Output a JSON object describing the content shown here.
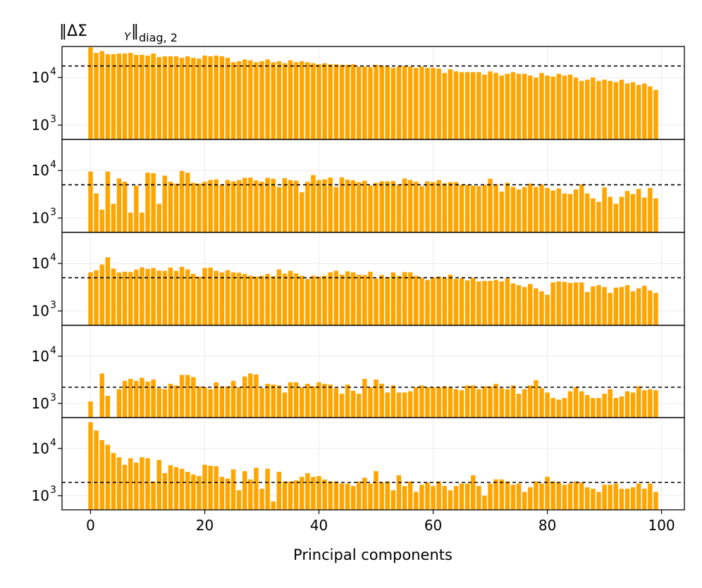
{
  "chart_data": {
    "type": "bar",
    "title_main": "‖ΔΣ",
    "title_sub_var": "Y",
    "title_norm": "diag, 2",
    "xlabel": "Principal components",
    "x_ticks": [
      "0",
      "20",
      "40",
      "60",
      "80",
      "100"
    ],
    "x_tick_values": [
      0,
      20,
      40,
      60,
      80,
      100
    ],
    "xlim": [
      -5,
      104
    ],
    "yscale": "log",
    "ylim": [
      500,
      45000
    ],
    "y_ticks": [
      {
        "value": 1000,
        "base": "10",
        "exp": "3"
      },
      {
        "value": 10000,
        "base": "10",
        "exp": "4"
      }
    ],
    "grid": true,
    "bar_color": "#FFA500",
    "reference_line_style": "dashed",
    "panels": [
      {
        "threshold": 17500,
        "values": [
          43000,
          33000,
          36000,
          31000,
          31000,
          32000,
          32000,
          33000,
          30000,
          30000,
          29000,
          32000,
          27000,
          28000,
          28000,
          28000,
          26000,
          28000,
          26000,
          25000,
          29000,
          28000,
          29000,
          28000,
          26000,
          21000,
          22000,
          24000,
          23000,
          21000,
          22000,
          24000,
          21000,
          22000,
          20000,
          23000,
          21000,
          22000,
          21000,
          20000,
          19000,
          20000,
          19000,
          19000,
          18500,
          18500,
          19000,
          17000,
          17000,
          16500,
          18500,
          18000,
          17000,
          16000,
          17000,
          17500,
          17000,
          16000,
          17000,
          16000,
          16000,
          15500,
          12500,
          15000,
          13500,
          13000,
          13000,
          13000,
          13000,
          11500,
          13500,
          12500,
          11000,
          12000,
          13000,
          12000,
          12000,
          11000,
          10000,
          12500,
          11000,
          10500,
          12000,
          11000,
          11500,
          10000,
          8500,
          9000,
          10000,
          8500,
          9000,
          8500,
          8000,
          9000,
          7500,
          8000,
          7000,
          7500,
          6500,
          5500
        ]
      },
      {
        "threshold": 5000,
        "values": [
          9500,
          3300,
          1500,
          9500,
          2000,
          6800,
          5800,
          1300,
          4800,
          1300,
          9000,
          8800,
          2000,
          7800,
          5800,
          5300,
          9800,
          9000,
          5500,
          5300,
          5800,
          6300,
          6500,
          5000,
          6300,
          5900,
          6300,
          7000,
          7100,
          6200,
          5800,
          7000,
          6700,
          4500,
          6900,
          6300,
          6100,
          3500,
          5800,
          8000,
          6300,
          6500,
          7100,
          4500,
          7200,
          6400,
          6200,
          5700,
          6100,
          4800,
          5500,
          5900,
          5900,
          6000,
          5100,
          6800,
          6300,
          5800,
          4700,
          5900,
          5700,
          6300,
          5400,
          5700,
          5700,
          5000,
          5000,
          4800,
          4700,
          5000,
          6700,
          5100,
          3600,
          5500,
          4500,
          4000,
          4500,
          5300,
          4500,
          5100,
          4300,
          3800,
          4200,
          3300,
          3200,
          4000,
          5100,
          3300,
          2600,
          2200,
          4400,
          2800,
          2000,
          2800,
          3700,
          3200,
          4100,
          2700,
          4300,
          2600
        ]
      },
      {
        "threshold": 5000,
        "values": [
          6500,
          7200,
          9500,
          13500,
          7800,
          6500,
          6700,
          6600,
          7400,
          8300,
          7700,
          8000,
          7100,
          7000,
          8200,
          7000,
          8500,
          7500,
          6000,
          5300,
          8000,
          8200,
          7000,
          6500,
          7200,
          6500,
          6400,
          6000,
          5500,
          5300,
          5500,
          6000,
          5400,
          7500,
          6100,
          7000,
          6200,
          5500,
          4700,
          5500,
          5300,
          5500,
          6500,
          7000,
          5800,
          6800,
          6500,
          5800,
          5700,
          6700,
          4800,
          5700,
          5200,
          6500,
          5500,
          6600,
          6500,
          5500,
          5000,
          4500,
          5100,
          5300,
          4900,
          5800,
          4700,
          4900,
          4400,
          5000,
          4200,
          4300,
          4300,
          4500,
          4200,
          4800,
          3800,
          3500,
          3200,
          3700,
          3000,
          2600,
          2200,
          4000,
          4200,
          4100,
          3900,
          4000,
          4000,
          2500,
          3300,
          3500,
          3200,
          2400,
          3100,
          3200,
          3500,
          2600,
          3000,
          3400,
          2700,
          2400
        ]
      },
      {
        "threshold": 2200,
        "values": [
          1100,
          500,
          4300,
          1450,
          500,
          2000,
          3000,
          3300,
          3000,
          3500,
          2900,
          3200,
          2100,
          2000,
          2600,
          2400,
          4000,
          4000,
          3600,
          2300,
          2200,
          2000,
          2800,
          2300,
          2300,
          3000,
          2200,
          3700,
          4300,
          4100,
          2100,
          2600,
          2500,
          2400,
          1700,
          2800,
          2800,
          2200,
          2600,
          2300,
          2800,
          2600,
          2500,
          2100,
          1600,
          2500,
          1850,
          1600,
          3300,
          2200,
          3200,
          2600,
          1700,
          2400,
          1700,
          1700,
          1800,
          2200,
          2400,
          2200,
          2200,
          2200,
          2300,
          2200,
          2000,
          1900,
          2400,
          2400,
          2000,
          2300,
          2300,
          2600,
          2100,
          2000,
          2400,
          1600,
          2000,
          2400,
          3100,
          2100,
          1700,
          1300,
          1200,
          1300,
          1800,
          2200,
          1800,
          1500,
          1300,
          1300,
          1600,
          2000,
          1300,
          1400,
          1800,
          1700,
          2300,
          1900,
          2000,
          1900
        ]
      },
      {
        "threshold": 1900,
        "values": [
          36000,
          24000,
          15000,
          12000,
          8000,
          6500,
          4500,
          6200,
          5000,
          6500,
          6200,
          2000,
          5700,
          3000,
          4400,
          4000,
          3700,
          3200,
          2800,
          2600,
          4500,
          4300,
          4200,
          2500,
          2300,
          3600,
          1300,
          3300,
          2200,
          3900,
          1400,
          3700,
          750,
          3200,
          2000,
          2000,
          2100,
          2500,
          3000,
          2500,
          2600,
          2200,
          2000,
          2000,
          1800,
          1800,
          1600,
          2000,
          2400,
          1800,
          3300,
          1900,
          2000,
          1300,
          2700,
          1600,
          2000,
          1200,
          1700,
          1900,
          1600,
          2000,
          1600,
          1300,
          1600,
          1800,
          1800,
          2700,
          1600,
          1000,
          1800,
          2200,
          2200,
          2000,
          1700,
          1800,
          1200,
          1500,
          2000,
          1800,
          2500,
          2000,
          1900,
          1700,
          1800,
          2000,
          1900,
          1500,
          1400,
          1200,
          1700,
          1700,
          1800,
          1400,
          1400,
          1500,
          1800,
          1400,
          1800,
          1200
        ]
      }
    ]
  }
}
